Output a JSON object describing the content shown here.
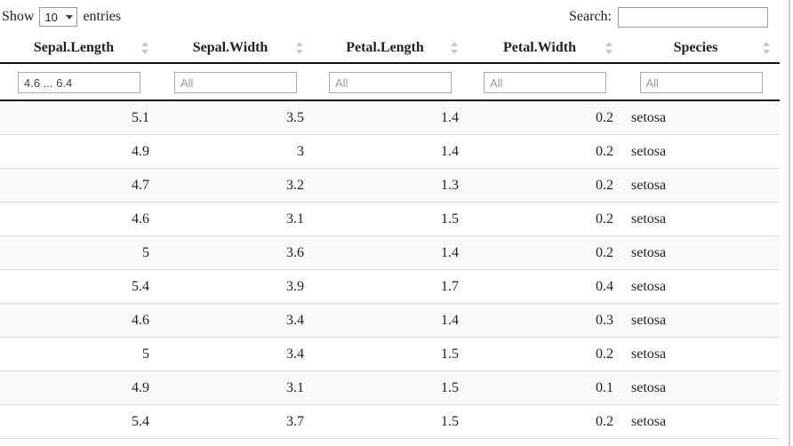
{
  "controls": {
    "show_label": "Show",
    "entries_label": "entries",
    "page_length": "10",
    "search_label": "Search:",
    "search_value": ""
  },
  "table": {
    "columns": [
      {
        "label": "Sepal.Length",
        "filter_value": "4.6 ... 6.4",
        "filter_placeholder": "All",
        "align": "right"
      },
      {
        "label": "Sepal.Width",
        "filter_value": "",
        "filter_placeholder": "All",
        "align": "right"
      },
      {
        "label": "Petal.Length",
        "filter_value": "",
        "filter_placeholder": "All",
        "align": "right"
      },
      {
        "label": "Petal.Width",
        "filter_value": "",
        "filter_placeholder": "All",
        "align": "right"
      },
      {
        "label": "Species",
        "filter_value": "",
        "filter_placeholder": "All",
        "align": "left"
      }
    ],
    "rows": [
      [
        "5.1",
        "3.5",
        "1.4",
        "0.2",
        "setosa"
      ],
      [
        "4.9",
        "3",
        "1.4",
        "0.2",
        "setosa"
      ],
      [
        "4.7",
        "3.2",
        "1.3",
        "0.2",
        "setosa"
      ],
      [
        "4.6",
        "3.1",
        "1.5",
        "0.2",
        "setosa"
      ],
      [
        "5",
        "3.6",
        "1.4",
        "0.2",
        "setosa"
      ],
      [
        "5.4",
        "3.9",
        "1.7",
        "0.4",
        "setosa"
      ],
      [
        "4.6",
        "3.4",
        "1.4",
        "0.3",
        "setosa"
      ],
      [
        "5",
        "3.4",
        "1.5",
        "0.2",
        "setosa"
      ],
      [
        "4.9",
        "3.1",
        "1.5",
        "0.1",
        "setosa"
      ],
      [
        "5.4",
        "3.7",
        "1.5",
        "0.2",
        "setosa"
      ]
    ]
  },
  "colors": {
    "stripe_row": "#f9f9f9",
    "row_border": "#dddddd",
    "header_border": "#111111",
    "input_border": "#aaaaaa",
    "sort_icon": "#c8c8c8",
    "placeholder_text": "#999999"
  },
  "icons": {
    "sort": "up-down-triangles-icon",
    "select_caret": "caret-down-icon"
  }
}
